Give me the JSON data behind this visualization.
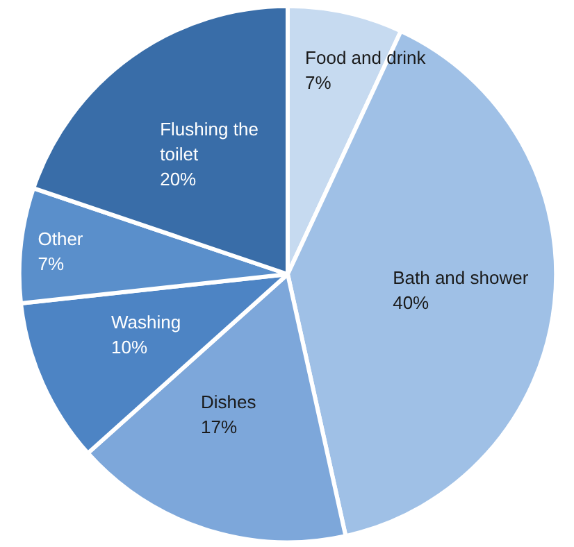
{
  "chart_data": {
    "type": "pie",
    "categories": [
      "Food and drink",
      "Bath and shower",
      "Dishes",
      "Washing",
      "Other",
      "Flushing the toilet"
    ],
    "values": [
      7,
      40,
      17,
      10,
      7,
      20
    ],
    "value_labels": [
      "7%",
      "40%",
      "17%",
      "10%",
      "7%",
      "20%"
    ],
    "colors": [
      "#c6daf0",
      "#9fc0e6",
      "#7da7da",
      "#4d84c4",
      "#5a8fcb",
      "#396da8"
    ]
  }
}
